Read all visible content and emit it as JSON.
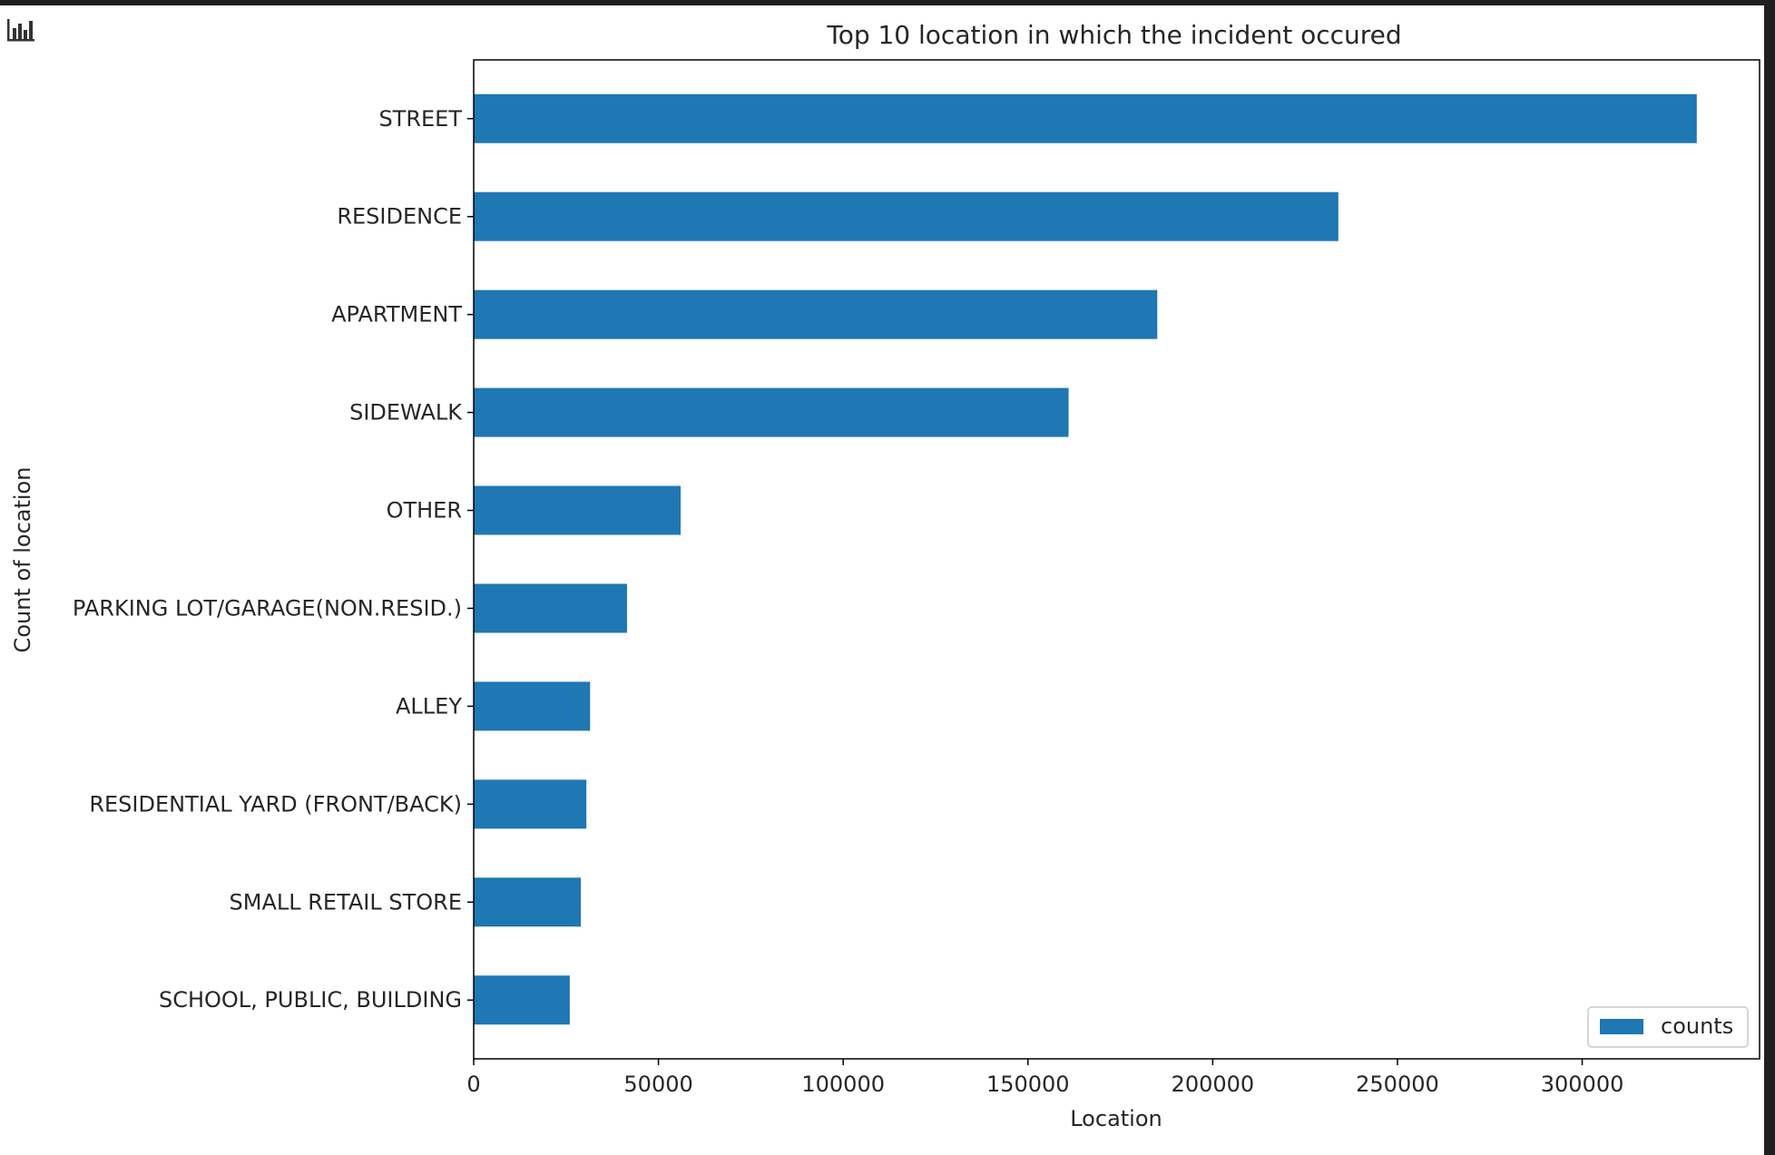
{
  "chart_data": {
    "type": "bar",
    "orientation": "horizontal",
    "title": "Top 10 location in which the incident occured",
    "xlabel": "Location",
    "ylabel": "Count of location",
    "categories": [
      "STREET",
      "RESIDENCE",
      "APARTMENT",
      "SIDEWALK",
      "OTHER",
      "PARKING LOT/GARAGE(NON.RESID.)",
      "ALLEY",
      "RESIDENTIAL YARD (FRONT/BACK)",
      "SMALL RETAIL STORE",
      "SCHOOL, PUBLIC, BUILDING"
    ],
    "series": [
      {
        "name": "counts",
        "values": [
          331000,
          234000,
          185000,
          161000,
          56000,
          41500,
          31500,
          30500,
          29000,
          26000
        ]
      }
    ],
    "xlim": [
      0,
      348000
    ],
    "xticks": [
      0,
      50000,
      100000,
      150000,
      200000,
      250000,
      300000
    ],
    "xtick_labels": [
      "0",
      "50000",
      "100000",
      "150000",
      "200000",
      "250000",
      "300000"
    ],
    "grid": false,
    "legend_position": "lower-right",
    "colors": {
      "bar": "#1f77b4"
    }
  },
  "icons": {
    "output": "bar-chart-icon"
  }
}
